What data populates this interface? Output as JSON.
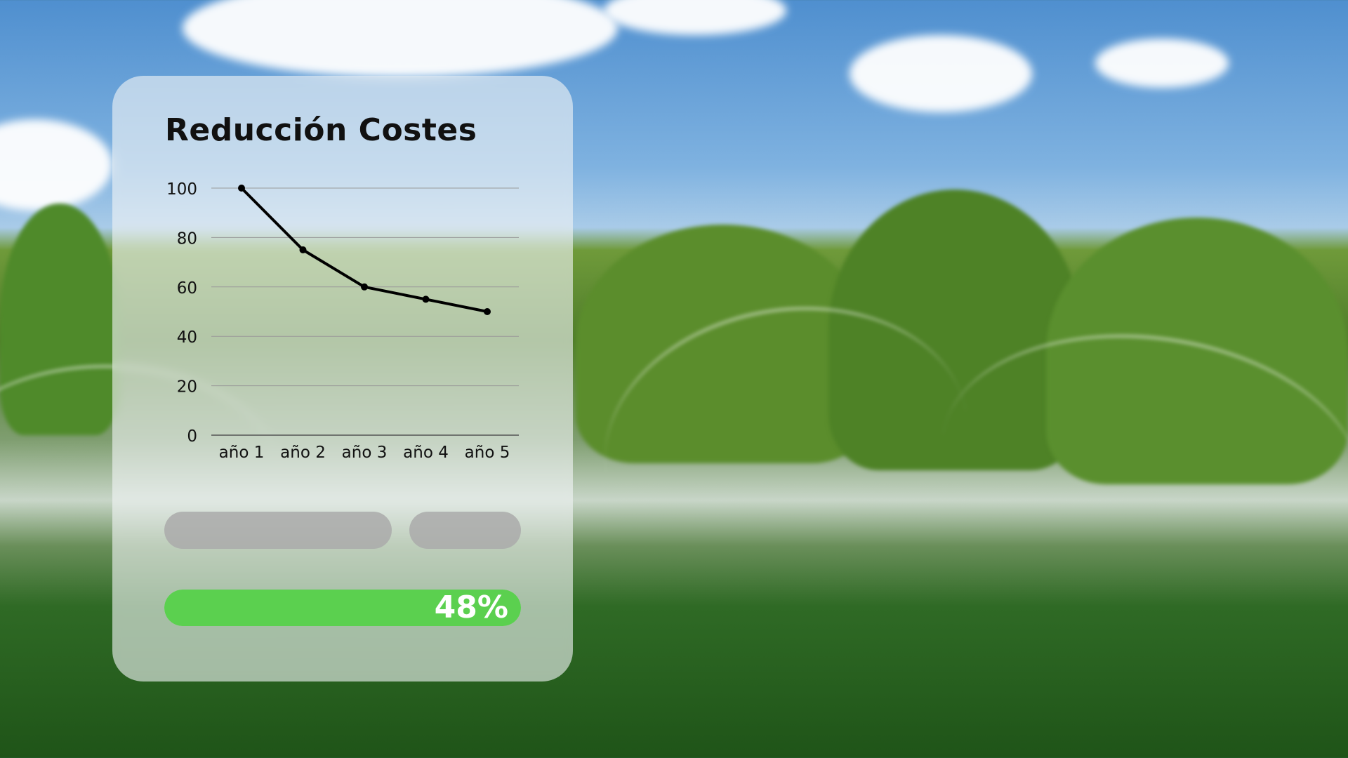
{
  "card": {
    "background": "translucent-white"
  },
  "chart_data": {
    "type": "line",
    "title": "Reducción Costes",
    "categories": [
      "año 1",
      "año 2",
      "año 3",
      "año 4",
      "año 5"
    ],
    "values": [
      100,
      75,
      60,
      55,
      50
    ],
    "yticks": [
      "0",
      "20",
      "40",
      "60",
      "80",
      "100"
    ],
    "ylim": [
      0,
      100
    ],
    "grid": true,
    "line_color": "#000000"
  },
  "progress": {
    "value": 100,
    "label": "48%",
    "color": "#5bd04f"
  },
  "placeholders": [
    {
      "color": "#aaaaaa"
    },
    {
      "color": "#aaaaaa"
    }
  ]
}
